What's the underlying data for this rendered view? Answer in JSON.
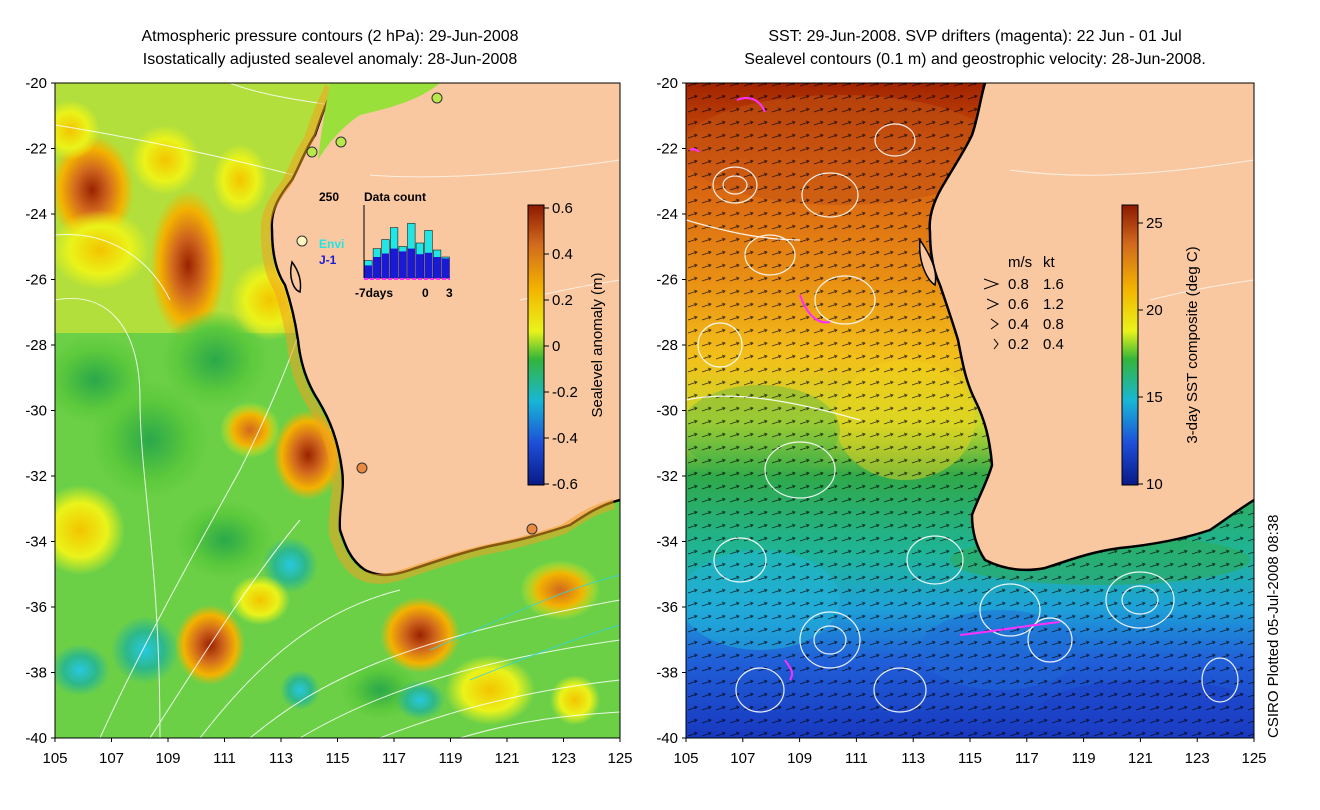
{
  "left_panel": {
    "title_line1": "Atmospheric pressure contours (2 hPa): 29-Jun-2008",
    "title_line2": "Isostatically adjusted sealevel anomaly: 28-Jun-2008",
    "y_ticks": [
      "-20",
      "-22",
      "-24",
      "-26",
      "-28",
      "-30",
      "-32",
      "-34",
      "-36",
      "-38",
      "-40"
    ],
    "x_ticks": [
      "105",
      "107",
      "109",
      "111",
      "113",
      "115",
      "117",
      "119",
      "121",
      "123",
      "125"
    ],
    "colorbar": {
      "label": "Sealevel anomaly (m)",
      "ticks": [
        "0.6",
        "0.4",
        "0.2",
        "0",
        "-0.2",
        "-0.4",
        "-0.6"
      ],
      "colors": [
        "#8b1a00",
        "#d2691e",
        "#f3b300",
        "#eaf31a",
        "#34b53a",
        "#18b6d6",
        "#1e4fd8",
        "#081a86"
      ]
    },
    "inset": {
      "count_label": "250",
      "title": "Data count",
      "envi_label": "Envi",
      "j1_label": "J-1",
      "x_left": "-7days",
      "x_mid": "0",
      "x_right": "3",
      "envi_color": "#22e6e6",
      "j1_color": "#1a1ad6",
      "bar_values_envi": [
        0.25,
        0.42,
        0.55,
        0.72,
        0.45,
        0.78,
        0.5,
        0.68,
        0.4,
        0.3
      ],
      "bar_values_j1": [
        0.18,
        0.3,
        0.35,
        0.42,
        0.38,
        0.42,
        0.34,
        0.36,
        0.3,
        0.28
      ]
    }
  },
  "right_panel": {
    "title_line1": "SST: 29-Jun-2008. SVP drifters (magenta): 22 Jun - 01 Jul",
    "title_line2": "Sealevel contours (0.1 m) and geostrophic velocity: 28-Jun-2008.",
    "y_ticks": [
      "-20",
      "-22",
      "-24",
      "-26",
      "-28",
      "-30",
      "-32",
      "-34",
      "-36",
      "-38",
      "-40"
    ],
    "x_ticks": [
      "105",
      "107",
      "109",
      "111",
      "113",
      "115",
      "117",
      "119",
      "121",
      "123",
      "125"
    ],
    "colorbar": {
      "label": "3-day SST composite (deg C)",
      "ticks": [
        "25",
        "20",
        "15",
        "10"
      ],
      "colors": [
        "#8b1a00",
        "#d2691e",
        "#f3b300",
        "#eaf31a",
        "#34b53a",
        "#18b6d6",
        "#1e4fd8",
        "#081a86"
      ]
    },
    "velocity_legend": {
      "header_ms": "m/s",
      "header_kt": "kt",
      "rows": [
        {
          "ms": "0.8",
          "kt": "1.6"
        },
        {
          "ms": "0.6",
          "kt": "1.2"
        },
        {
          "ms": "0.4",
          "kt": "0.8"
        },
        {
          "ms": "0.2",
          "kt": "0.4"
        }
      ]
    }
  },
  "land_color": "#f9c8a0",
  "credit": "CSIRO Plotted 05-Jul-2008 08:38"
}
